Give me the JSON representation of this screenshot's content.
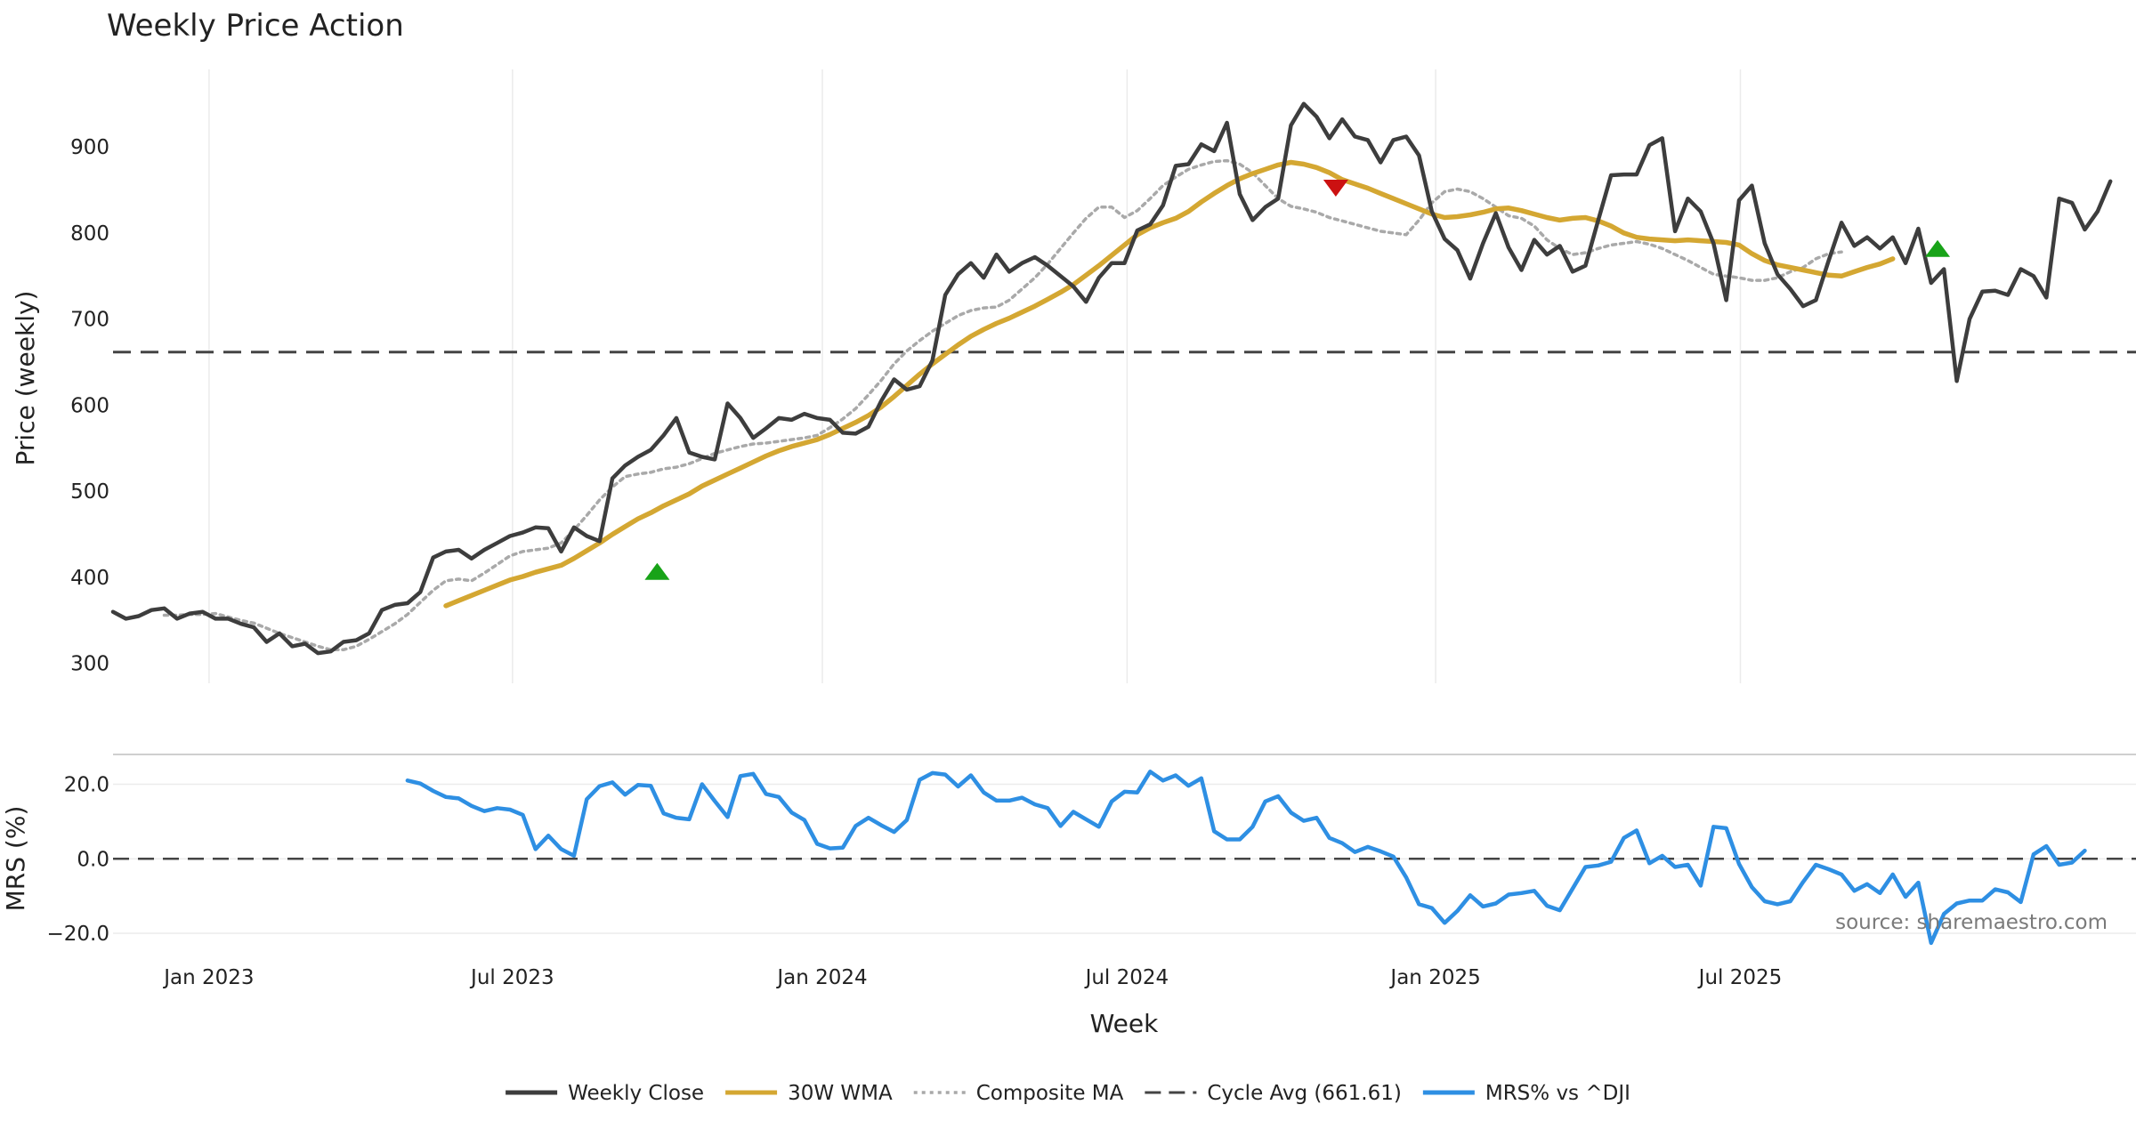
{
  "chart_data": {
    "type": "line",
    "title": "Weekly Price Action",
    "xlabel": "Week",
    "source_text": "source: sharemaestro.com",
    "x_ticks": [
      "Jan 2023",
      "Jul 2023",
      "Jan 2024",
      "Jul 2024",
      "Jan 2025",
      "Jul 2025"
    ],
    "x_range": [
      0,
      158
    ],
    "x_tick_weeks": [
      7.5,
      31.2,
      55.4,
      79.2,
      103.3,
      127.1
    ],
    "price_panel": {
      "ylabel": "Price (weekly)",
      "ylim": [
        277,
        990
      ],
      "yticks": [
        300,
        400,
        500,
        600,
        700,
        800,
        900
      ],
      "cycle_avg": 661.61,
      "series": [
        {
          "name": "Weekly Close",
          "color": "#3d3d3d",
          "style": "solid",
          "start": 0,
          "values": [
            360,
            352,
            355,
            362,
            364,
            352,
            358,
            360,
            352,
            352,
            346,
            342,
            325,
            335,
            320,
            323,
            312,
            314,
            325,
            327,
            335,
            362,
            368,
            370,
            383,
            423,
            430,
            432,
            422,
            432,
            440,
            448,
            452,
            458,
            457,
            430,
            458,
            448,
            442,
            515,
            530,
            540,
            548,
            565,
            585,
            545,
            540,
            537,
            602,
            585,
            562,
            573,
            585,
            583,
            590,
            585,
            583,
            568,
            567,
            575,
            605,
            630,
            618,
            622,
            652,
            728,
            752,
            765,
            748,
            775,
            755,
            765,
            772,
            762,
            750,
            738,
            720,
            748,
            765,
            765,
            803,
            810,
            832,
            878,
            880,
            903,
            895,
            928,
            845,
            815,
            830,
            840,
            925,
            950,
            935,
            910,
            932,
            912,
            908,
            882,
            908,
            912,
            890,
            825,
            793,
            780,
            747,
            788,
            823,
            783,
            757,
            792,
            775,
            785,
            755,
            762,
            815,
            867,
            868,
            868,
            902,
            910,
            802,
            840,
            825,
            788,
            722,
            838,
            855,
            788,
            752,
            735,
            715,
            722,
            768,
            812,
            785,
            795,
            782,
            795,
            765,
            805,
            742,
            758,
            628,
            700,
            732,
            733,
            728,
            758,
            750,
            725,
            840,
            835,
            804,
            825,
            860
          ]
        },
        {
          "name": "30W WMA",
          "color": "#d4a732",
          "style": "solid",
          "start": 26,
          "values": [
            367,
            373,
            379,
            385,
            391,
            397,
            401,
            406,
            410,
            414,
            422,
            431,
            440,
            450,
            459,
            468,
            475,
            483,
            490,
            497,
            506,
            513,
            520,
            527,
            534,
            541,
            547,
            552,
            556,
            560,
            566,
            573,
            580,
            588,
            598,
            610,
            623,
            636,
            648,
            659,
            670,
            680,
            688,
            695,
            701,
            708,
            715,
            723,
            731,
            740,
            751,
            762,
            774,
            786,
            798,
            806,
            812,
            817,
            825,
            836,
            846,
            855,
            863,
            869,
            874,
            879,
            882,
            880,
            876,
            870,
            862,
            857,
            852,
            846,
            840,
            834,
            828,
            822,
            818,
            819,
            821,
            824,
            828,
            829,
            826,
            822,
            818,
            815,
            817,
            818,
            814,
            808,
            800,
            795,
            793,
            792,
            791,
            792,
            791,
            790,
            789,
            786,
            776,
            768,
            763,
            760,
            757,
            754,
            751,
            750,
            755,
            760,
            764,
            770
          ]
        },
        {
          "name": "Composite MA",
          "color": "#a9a9a9",
          "style": "dotted",
          "start": 4,
          "values": [
            356,
            356,
            357,
            357,
            358,
            354,
            350,
            347,
            341,
            335,
            330,
            325,
            320,
            316,
            316,
            320,
            328,
            337,
            346,
            357,
            371,
            385,
            396,
            398,
            396,
            405,
            415,
            425,
            430,
            432,
            434,
            440,
            455,
            472,
            490,
            505,
            517,
            520,
            522,
            526,
            528,
            532,
            538,
            544,
            548,
            552,
            555,
            556,
            558,
            560,
            562,
            565,
            574,
            584,
            596,
            612,
            629,
            648,
            663,
            675,
            686,
            695,
            704,
            710,
            713,
            714,
            722,
            735,
            748,
            764,
            782,
            800,
            817,
            830,
            830,
            818,
            826,
            840,
            855,
            865,
            874,
            879,
            883,
            884,
            880,
            870,
            855,
            840,
            831,
            828,
            824,
            818,
            814,
            810,
            806,
            802,
            800,
            798,
            815,
            835,
            848,
            851,
            848,
            840,
            830,
            820,
            817,
            808,
            792,
            782,
            775,
            777,
            782,
            786,
            788,
            790,
            787,
            782,
            775,
            768,
            760,
            752,
            750,
            748,
            745,
            745,
            748,
            755,
            760,
            770,
            776,
            778
          ]
        }
      ],
      "markers": [
        {
          "week": 42.5,
          "price": 407,
          "type": "buy",
          "color": "#18a318"
        },
        {
          "week": 95.5,
          "price": 852,
          "type": "sell",
          "color": "#cc1111"
        },
        {
          "week": 142.5,
          "price": 782,
          "type": "buy",
          "color": "#18a318"
        }
      ]
    },
    "mrs_panel": {
      "ylabel": "MRS (%)",
      "ylim": [
        -25,
        28
      ],
      "yticks": [
        20.0,
        0.0,
        -20.0
      ],
      "ytick_labels": [
        "20.0",
        "0.0",
        "−20.0"
      ],
      "zero_line": 0,
      "series": [
        {
          "name": "MRS% vs ^DJI",
          "color": "#2e8fe3",
          "style": "solid",
          "start": 23,
          "values": [
            21,
            20.2,
            18.2,
            16.6,
            16.2,
            14.2,
            12.8,
            13.6,
            13.2,
            11.8,
            2.6,
            6.2,
            2.6,
            0.8,
            16,
            19.5,
            20.5,
            17.2,
            19.8,
            19.6,
            12.2,
            11,
            10.6,
            20,
            15.5,
            11.2,
            22.2,
            22.8,
            17.4,
            16.6,
            12.4,
            10.4,
            4,
            2.8,
            3,
            8.8,
            11,
            9,
            7.2,
            10.4,
            21.2,
            23,
            22.6,
            19.4,
            22.4,
            17.8,
            15.6,
            15.6,
            16.4,
            14.6,
            13.6,
            8.8,
            12.6,
            10.6,
            8.6,
            15.4,
            18,
            17.8,
            23.4,
            21,
            22.4,
            19.6,
            21.6,
            7.4,
            5.2,
            5.2,
            8.6,
            15.4,
            16.8,
            12.4,
            10.2,
            11,
            5.6,
            4.2,
            1.8,
            3.2,
            2,
            0.6,
            -5,
            -12.2,
            -13.2,
            -17.2,
            -14,
            -9.8,
            -12.8,
            -12,
            -9.6,
            -9.2,
            -8.6,
            -12.6,
            -13.8,
            -8,
            -2.2,
            -1.8,
            -0.8,
            5.6,
            7.6,
            -1.2,
            0.8,
            -2.2,
            -1.6,
            -7.2,
            8.6,
            8.2,
            -1.4,
            -7.6,
            -11.4,
            -12.2,
            -11.4,
            -6.2,
            -1.6,
            -2.8,
            -4.2,
            -8.6,
            -6.8,
            -9.2,
            -4.2,
            -10.2,
            -6.4,
            -22.6,
            -14.8,
            -12,
            -11.2,
            -11.2,
            -8.2,
            -9,
            -11.6,
            1.2,
            3.4,
            -1.6,
            -1,
            2.2
          ]
        }
      ]
    },
    "legend": [
      {
        "label": "Weekly Close",
        "color": "#3d3d3d",
        "style": "solid"
      },
      {
        "label": "30W WMA",
        "color": "#d4a732",
        "style": "solid"
      },
      {
        "label": "Composite MA",
        "color": "#a9a9a9",
        "style": "dotted"
      },
      {
        "label": "Cycle Avg (661.61)",
        "color": "#444444",
        "style": "dashed"
      },
      {
        "label": "MRS% vs ^DJI",
        "color": "#2e8fe3",
        "style": "solid"
      }
    ]
  }
}
